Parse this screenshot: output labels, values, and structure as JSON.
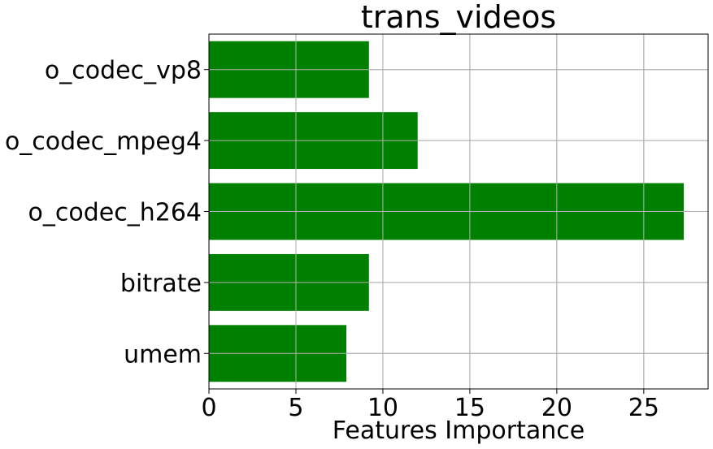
{
  "chart_data": {
    "type": "bar",
    "orientation": "horizontal",
    "title": "trans_videos",
    "xlabel": "Features Importance",
    "ylabel": "",
    "categories": [
      "umem",
      "bitrate",
      "o_codec_h264",
      "o_codec_mpeg4",
      "o_codec_vp8"
    ],
    "values": [
      7.9,
      9.2,
      27.3,
      12.0,
      9.2
    ],
    "xlim": [
      0,
      28.7
    ],
    "xticks": [
      0,
      5,
      10,
      15,
      20,
      25
    ],
    "grid": true,
    "bar_color": "#008000"
  }
}
